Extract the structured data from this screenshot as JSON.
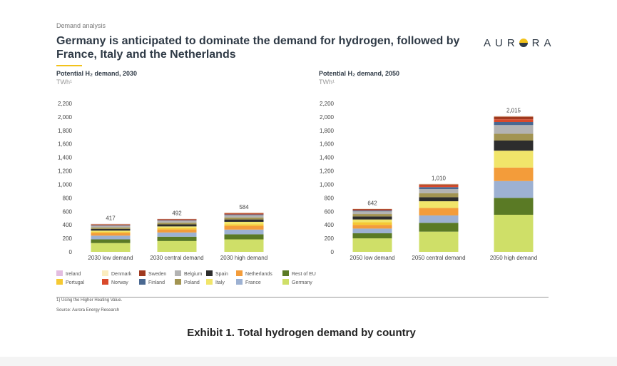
{
  "header": {
    "section": "Demand analysis",
    "title": "Germany is anticipated to dominate the demand for hydrogen, followed by France, Italy and the Netherlands",
    "logo": "AUR",
    "logo_tail": "RA"
  },
  "colors": {
    "Ireland": "#e3bde0",
    "Denmark": "#fbedbf",
    "Sweden": "#a0391f",
    "Belgium": "#b3b3b3",
    "Spain": "#2d2d2d",
    "Netherlands": "#f39c3a",
    "Rest of EU": "#5a7a25",
    "Portugal": "#f5c933",
    "Norway": "#d9492b",
    "Finland": "#4a6891",
    "Poland": "#a29452",
    "Italy": "#f1e56a",
    "France": "#9db1d2",
    "Germany": "#cfdf68"
  },
  "legend": {
    "row1": [
      "Ireland",
      "Denmark",
      "Sweden",
      "Belgium",
      "Spain",
      "Netherlands",
      "Rest of EU"
    ],
    "row2": [
      "Portugal",
      "Norway",
      "Finland",
      "Poland",
      "Italy",
      "France",
      "Germany"
    ]
  },
  "stack_order": [
    "Germany",
    "Rest of EU",
    "France",
    "Netherlands",
    "Portugal",
    "Italy",
    "Spain",
    "Poland",
    "Belgium",
    "Finland",
    "Norway",
    "Sweden",
    "Denmark",
    "Ireland"
  ],
  "chart_data": [
    {
      "type": "bar",
      "stacked": true,
      "title": "Potential H₂ demand, 2030",
      "ylabel": "TWh¹",
      "ylim": [
        0,
        2200
      ],
      "yticks": [
        "0",
        "200",
        "400",
        "600",
        "800",
        "1,000",
        "1,200",
        "1,400",
        "1,600",
        "1,800",
        "2,000",
        "2,200"
      ],
      "categories": [
        "2030 low demand",
        "2030 central demand",
        "2030 high demand"
      ],
      "totals": [
        417,
        492,
        584
      ],
      "total_labels": [
        "417",
        "492",
        "584"
      ],
      "series": [
        {
          "name": "Germany",
          "values": [
            130,
            160,
            185
          ]
        },
        {
          "name": "Rest of EU",
          "values": [
            55,
            65,
            75
          ]
        },
        {
          "name": "France",
          "values": [
            55,
            62,
            70
          ]
        },
        {
          "name": "Netherlands",
          "values": [
            40,
            45,
            55
          ]
        },
        {
          "name": "Portugal",
          "values": [
            15,
            20,
            25
          ]
        },
        {
          "name": "Italy",
          "values": [
            20,
            25,
            35
          ]
        },
        {
          "name": "Spain",
          "values": [
            25,
            30,
            35
          ]
        },
        {
          "name": "Poland",
          "values": [
            22,
            25,
            30
          ]
        },
        {
          "name": "Belgium",
          "values": [
            25,
            30,
            35
          ]
        },
        {
          "name": "Finland",
          "values": [
            8,
            8,
            10
          ]
        },
        {
          "name": "Norway",
          "values": [
            7,
            8,
            10
          ]
        },
        {
          "name": "Sweden",
          "values": [
            7,
            8,
            10
          ]
        },
        {
          "name": "Denmark",
          "values": [
            5,
            4,
            7
          ]
        },
        {
          "name": "Ireland",
          "values": [
            3,
            2,
            2
          ]
        }
      ]
    },
    {
      "type": "bar",
      "stacked": true,
      "title": "Potential H₂ demand, 2050",
      "ylabel": "TWh¹",
      "ylim": [
        0,
        2200
      ],
      "yticks": [
        "0",
        "200",
        "400",
        "600",
        "800",
        "1,000",
        "1,200",
        "1,400",
        "1,600",
        "1,800",
        "2,000",
        "2,200"
      ],
      "categories": [
        "2050 low demand",
        "2050 central demand",
        "2050 high demand"
      ],
      "totals": [
        642,
        1010,
        2015
      ],
      "total_labels": [
        "642",
        "1,010",
        "2,015"
      ],
      "series": [
        {
          "name": "Germany",
          "values": [
            200,
            300,
            550
          ]
        },
        {
          "name": "Rest of EU",
          "values": [
            75,
            130,
            250
          ]
        },
        {
          "name": "France",
          "values": [
            70,
            110,
            250
          ]
        },
        {
          "name": "Netherlands",
          "values": [
            55,
            110,
            200
          ]
        },
        {
          "name": "Portugal",
          "values": [
            40,
            0,
            0
          ]
        },
        {
          "name": "Italy",
          "values": [
            40,
            100,
            250
          ]
        },
        {
          "name": "Spain",
          "values": [
            45,
            60,
            150
          ]
        },
        {
          "name": "Poland",
          "values": [
            35,
            60,
            100
          ]
        },
        {
          "name": "Belgium",
          "values": [
            40,
            60,
            130
          ]
        },
        {
          "name": "Finland",
          "values": [
            15,
            30,
            45
          ]
        },
        {
          "name": "Norway",
          "values": [
            10,
            25,
            40
          ]
        },
        {
          "name": "Sweden",
          "values": [
            10,
            15,
            40
          ]
        },
        {
          "name": "Denmark",
          "values": [
            5,
            8,
            7
          ]
        },
        {
          "name": "Ireland",
          "values": [
            2,
            2,
            3
          ]
        }
      ]
    }
  ],
  "footnote": "1) Using the Higher Heating Value.",
  "source": "Source: Aurora Energy Research",
  "caption": "Exhibit 1. Total hydrogen demand by country"
}
